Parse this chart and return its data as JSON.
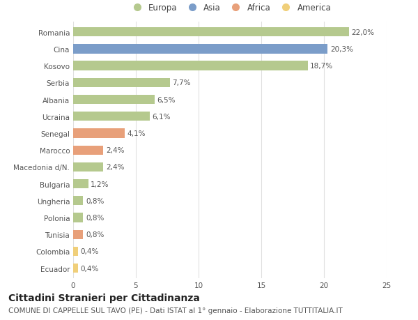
{
  "countries": [
    "Romania",
    "Cina",
    "Kosovo",
    "Serbia",
    "Albania",
    "Ucraina",
    "Senegal",
    "Marocco",
    "Macedonia d/N.",
    "Bulgaria",
    "Ungheria",
    "Polonia",
    "Tunisia",
    "Colombia",
    "Ecuador"
  ],
  "values": [
    22.0,
    20.3,
    18.7,
    7.7,
    6.5,
    6.1,
    4.1,
    2.4,
    2.4,
    1.2,
    0.8,
    0.8,
    0.8,
    0.4,
    0.4
  ],
  "labels": [
    "22,0%",
    "20,3%",
    "18,7%",
    "7,7%",
    "6,5%",
    "6,1%",
    "4,1%",
    "2,4%",
    "2,4%",
    "1,2%",
    "0,8%",
    "0,8%",
    "0,8%",
    "0,4%",
    "0,4%"
  ],
  "continents": [
    "Europa",
    "Asia",
    "Europa",
    "Europa",
    "Europa",
    "Europa",
    "Africa",
    "Africa",
    "Europa",
    "Europa",
    "Europa",
    "Europa",
    "Africa",
    "America",
    "America"
  ],
  "colors": {
    "Europa": "#b5c98e",
    "Asia": "#7b9dc9",
    "Africa": "#e8a07a",
    "America": "#f0cf7a"
  },
  "legend_order": [
    "Europa",
    "Asia",
    "Africa",
    "America"
  ],
  "title": "Cittadini Stranieri per Cittadinanza",
  "subtitle": "COMUNE DI CAPPELLE SUL TAVO (PE) - Dati ISTAT al 1° gennaio - Elaborazione TUTTITALIA.IT",
  "xlim": [
    0,
    25
  ],
  "xticks": [
    0,
    5,
    10,
    15,
    20,
    25
  ],
  "bg_color": "#ffffff",
  "grid_color": "#e0e0e0",
  "bar_height": 0.55,
  "title_fontsize": 10,
  "subtitle_fontsize": 7.5,
  "label_fontsize": 7.5,
  "tick_fontsize": 7.5,
  "legend_fontsize": 8.5
}
